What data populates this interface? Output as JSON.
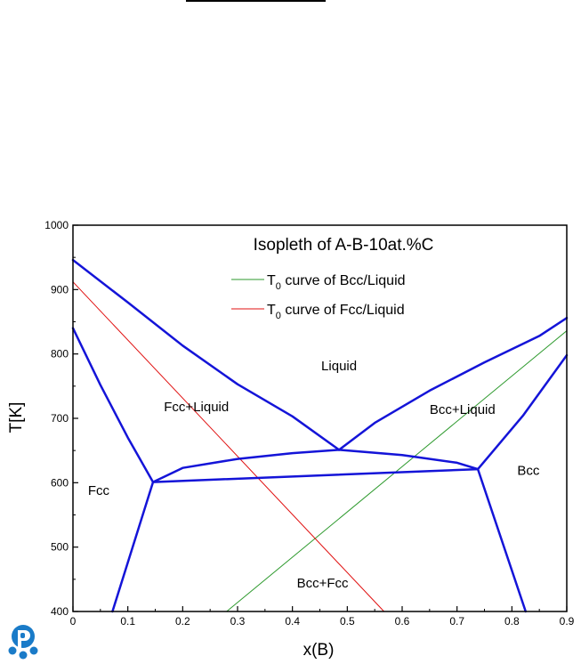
{
  "page": {
    "logo_icon": "pandat-logo-icon"
  },
  "chart_data": {
    "type": "line",
    "title": "Isopleth of A-B-10at.%C",
    "xlabel": "x(B)",
    "ylabel": "T[K]",
    "xlim": [
      0,
      0.9
    ],
    "ylim": [
      400,
      1000
    ],
    "x_ticks": [
      "0",
      "0.1",
      "0.2",
      "0.3",
      "0.4",
      "0.5",
      "0.6",
      "0.7",
      "0.8",
      "0.9"
    ],
    "y_ticks": [
      "400",
      "500",
      "600",
      "700",
      "800",
      "900",
      "1000"
    ],
    "grid": false,
    "legend_position": "top-right",
    "legend": [
      {
        "sub": "0",
        "text": " curve of Bcc/Liquid",
        "color": "#2e9a2e"
      },
      {
        "sub": "0",
        "text": " curve of Fcc/Liquid",
        "color": "#e01010"
      }
    ],
    "series": [
      {
        "name": "T0 curve of Bcc/Liquid",
        "color": "#2e9a2e",
        "width": 1,
        "points": [
          [
            0.28,
            400
          ],
          [
            0.9,
            836
          ]
        ]
      },
      {
        "name": "T0 curve of Fcc/Liquid",
        "color": "#e01010",
        "width": 1,
        "points": [
          [
            0,
            912
          ],
          [
            0.567,
            400
          ]
        ]
      },
      {
        "color": "#1414d8",
        "width": 2.5,
        "points": [
          [
            0,
            946
          ],
          [
            0.1,
            880
          ],
          [
            0.2,
            813
          ],
          [
            0.3,
            753
          ],
          [
            0.4,
            703
          ],
          [
            0.485,
            651
          ]
        ]
      },
      {
        "color": "#1414d8",
        "width": 2.5,
        "points": [
          [
            0.485,
            651
          ],
          [
            0.55,
            693
          ],
          [
            0.65,
            743
          ],
          [
            0.75,
            787
          ],
          [
            0.85,
            828
          ],
          [
            0.9,
            856
          ]
        ]
      },
      {
        "color": "#1414d8",
        "width": 2.5,
        "points": [
          [
            0,
            840
          ],
          [
            0.05,
            752
          ],
          [
            0.1,
            670
          ],
          [
            0.146,
            601
          ]
        ]
      },
      {
        "color": "#1414d8",
        "width": 2.5,
        "points": [
          [
            0.146,
            601
          ],
          [
            0.072,
            400
          ]
        ]
      },
      {
        "color": "#1414d8",
        "width": 2.5,
        "points": [
          [
            0.146,
            601
          ],
          [
            0.738,
            621
          ]
        ]
      },
      {
        "color": "#1414d8",
        "width": 2.5,
        "points": [
          [
            0.146,
            601
          ],
          [
            0.2,
            623
          ],
          [
            0.3,
            637
          ],
          [
            0.4,
            646
          ],
          [
            0.485,
            651
          ],
          [
            0.6,
            643
          ],
          [
            0.7,
            631
          ],
          [
            0.738,
            621
          ]
        ]
      },
      {
        "color": "#1414d8",
        "width": 2.5,
        "points": [
          [
            0.738,
            621
          ],
          [
            0.82,
            704
          ],
          [
            0.9,
            798
          ]
        ]
      },
      {
        "color": "#1414d8",
        "width": 2.5,
        "points": [
          [
            0.738,
            621
          ],
          [
            0.825,
            400
          ]
        ]
      }
    ],
    "annotations": [
      {
        "text": "Liquid",
        "x": 0.485,
        "y": 775
      },
      {
        "text": "Fcc+Liquid",
        "x": 0.225,
        "y": 711
      },
      {
        "text": "Bcc+Liquid",
        "x": 0.71,
        "y": 707
      },
      {
        "text": "Fcc",
        "x": 0.047,
        "y": 581
      },
      {
        "text": "Bcc",
        "x": 0.83,
        "y": 612
      },
      {
        "text": "Bcc+Fcc",
        "x": 0.455,
        "y": 437
      }
    ]
  }
}
